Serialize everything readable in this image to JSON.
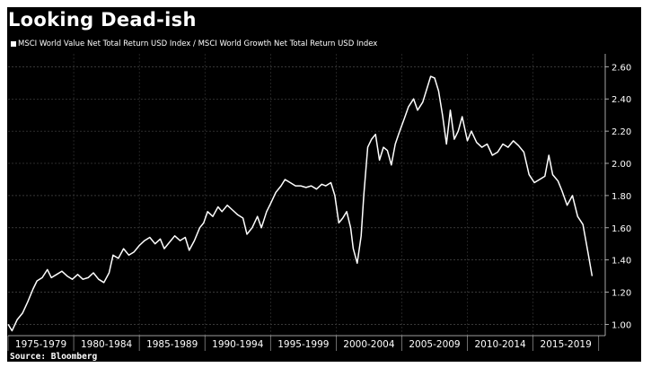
{
  "chart_data": {
    "type": "line",
    "title": "Looking Dead-ish",
    "source": "Source: Bloomberg",
    "series": [
      {
        "name": "MSCI World Value Net Total Return USD Index / MSCI World Growth Net Total Return USD Index",
        "color": "#ffffff",
        "points": [
          [
            1975.0,
            1.0
          ],
          [
            1975.3,
            0.96
          ],
          [
            1975.7,
            1.03
          ],
          [
            1976.1,
            1.07
          ],
          [
            1976.5,
            1.14
          ],
          [
            1976.9,
            1.22
          ],
          [
            1977.2,
            1.27
          ],
          [
            1977.6,
            1.29
          ],
          [
            1978.0,
            1.34
          ],
          [
            1978.3,
            1.29
          ],
          [
            1978.7,
            1.31
          ],
          [
            1979.1,
            1.33
          ],
          [
            1979.5,
            1.3
          ],
          [
            1979.9,
            1.28
          ],
          [
            1980.3,
            1.31
          ],
          [
            1980.7,
            1.28
          ],
          [
            1981.1,
            1.29
          ],
          [
            1981.5,
            1.32
          ],
          [
            1981.9,
            1.28
          ],
          [
            1982.3,
            1.26
          ],
          [
            1982.7,
            1.32
          ],
          [
            1983.0,
            1.43
          ],
          [
            1983.4,
            1.41
          ],
          [
            1983.8,
            1.47
          ],
          [
            1984.2,
            1.43
          ],
          [
            1984.6,
            1.45
          ],
          [
            1985.0,
            1.49
          ],
          [
            1985.4,
            1.52
          ],
          [
            1985.8,
            1.54
          ],
          [
            1986.2,
            1.5
          ],
          [
            1986.6,
            1.53
          ],
          [
            1986.9,
            1.47
          ],
          [
            1987.3,
            1.51
          ],
          [
            1987.7,
            1.55
          ],
          [
            1988.1,
            1.52
          ],
          [
            1988.5,
            1.54
          ],
          [
            1988.8,
            1.46
          ],
          [
            1989.2,
            1.52
          ],
          [
            1989.6,
            1.6
          ],
          [
            1989.9,
            1.63
          ],
          [
            1990.2,
            1.7
          ],
          [
            1990.6,
            1.67
          ],
          [
            1991.0,
            1.73
          ],
          [
            1991.3,
            1.7
          ],
          [
            1991.7,
            1.74
          ],
          [
            1992.1,
            1.71
          ],
          [
            1992.5,
            1.68
          ],
          [
            1992.9,
            1.66
          ],
          [
            1993.2,
            1.56
          ],
          [
            1993.6,
            1.6
          ],
          [
            1994.0,
            1.67
          ],
          [
            1994.3,
            1.6
          ],
          [
            1994.7,
            1.7
          ],
          [
            1995.0,
            1.75
          ],
          [
            1995.4,
            1.82
          ],
          [
            1995.8,
            1.86
          ],
          [
            1996.1,
            1.9
          ],
          [
            1996.5,
            1.88
          ],
          [
            1996.9,
            1.86
          ],
          [
            1997.3,
            1.86
          ],
          [
            1997.7,
            1.85
          ],
          [
            1998.1,
            1.86
          ],
          [
            1998.5,
            1.84
          ],
          [
            1998.9,
            1.87
          ],
          [
            1999.2,
            1.86
          ],
          [
            1999.6,
            1.88
          ],
          [
            1999.9,
            1.8
          ],
          [
            2000.2,
            1.63
          ],
          [
            2000.5,
            1.66
          ],
          [
            2000.8,
            1.7
          ],
          [
            2001.1,
            1.6
          ],
          [
            2001.3,
            1.47
          ],
          [
            2001.6,
            1.38
          ],
          [
            2001.9,
            1.55
          ],
          [
            2002.1,
            1.8
          ],
          [
            2002.4,
            2.1
          ],
          [
            2002.7,
            2.15
          ],
          [
            2003.0,
            2.18
          ],
          [
            2003.3,
            2.02
          ],
          [
            2003.6,
            2.1
          ],
          [
            2003.9,
            2.08
          ],
          [
            2004.2,
            1.99
          ],
          [
            2004.5,
            2.12
          ],
          [
            2004.8,
            2.19
          ],
          [
            2005.2,
            2.28
          ],
          [
            2005.5,
            2.35
          ],
          [
            2005.9,
            2.4
          ],
          [
            2006.2,
            2.33
          ],
          [
            2006.6,
            2.38
          ],
          [
            2006.9,
            2.46
          ],
          [
            2007.2,
            2.54
          ],
          [
            2007.5,
            2.53
          ],
          [
            2007.8,
            2.45
          ],
          [
            2008.1,
            2.3
          ],
          [
            2008.4,
            2.12
          ],
          [
            2008.7,
            2.33
          ],
          [
            2009.0,
            2.15
          ],
          [
            2009.3,
            2.2
          ],
          [
            2009.6,
            2.29
          ],
          [
            2010.0,
            2.14
          ],
          [
            2010.3,
            2.2
          ],
          [
            2010.7,
            2.13
          ],
          [
            2011.1,
            2.1
          ],
          [
            2011.5,
            2.12
          ],
          [
            2011.9,
            2.05
          ],
          [
            2012.3,
            2.07
          ],
          [
            2012.7,
            2.12
          ],
          [
            2013.1,
            2.1
          ],
          [
            2013.5,
            2.14
          ],
          [
            2013.9,
            2.11
          ],
          [
            2014.3,
            2.07
          ],
          [
            2014.7,
            1.93
          ],
          [
            2015.1,
            1.88
          ],
          [
            2015.5,
            1.9
          ],
          [
            2015.9,
            1.92
          ],
          [
            2016.2,
            2.05
          ],
          [
            2016.5,
            1.93
          ],
          [
            2016.9,
            1.89
          ],
          [
            2017.2,
            1.83
          ],
          [
            2017.6,
            1.74
          ],
          [
            2018.0,
            1.8
          ],
          [
            2018.4,
            1.67
          ],
          [
            2018.8,
            1.62
          ],
          [
            2019.2,
            1.44
          ],
          [
            2019.5,
            1.3
          ]
        ]
      }
    ],
    "x_categories": [
      "1975-1979",
      "1980-1984",
      "1985-1989",
      "1990-1994",
      "1995-1999",
      "2000-2004",
      "2005-2009",
      "2010-2014",
      "2015-2019"
    ],
    "x_range": [
      1975,
      2020.5
    ],
    "y_ticks": [
      "1.00",
      "1.20",
      "1.40",
      "1.60",
      "1.80",
      "2.00",
      "2.20",
      "2.40",
      "2.60"
    ],
    "y_range": [
      0.93,
      2.68
    ],
    "y_axis_side": "right",
    "grid": true
  }
}
